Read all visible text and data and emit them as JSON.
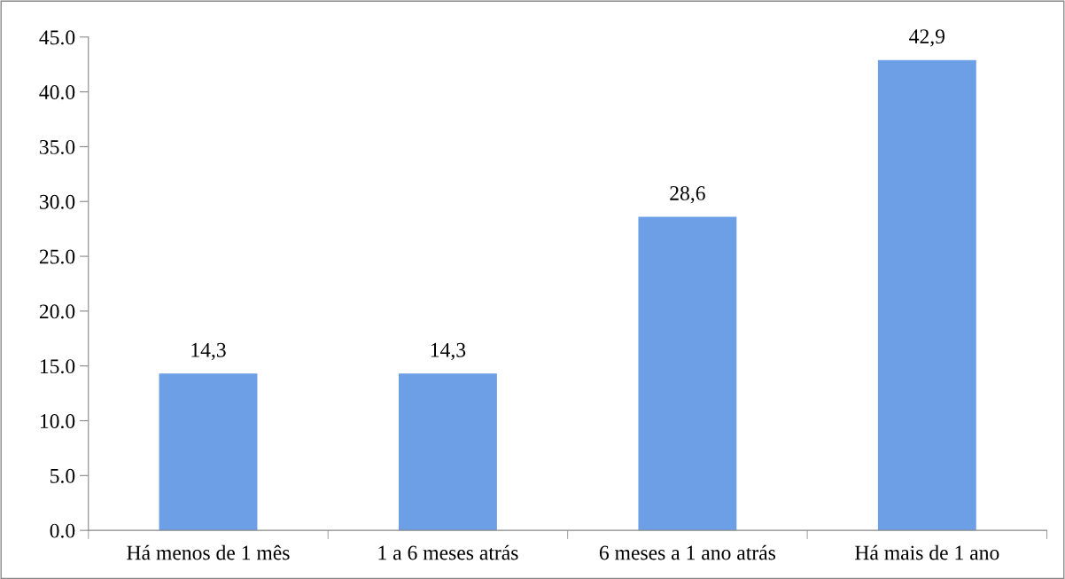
{
  "chart_data": {
    "type": "bar",
    "categories": [
      "Há menos de 1 mês",
      "1 a 6 meses atrás",
      "6 meses a 1 ano atrás",
      "Há mais de 1 ano"
    ],
    "values": [
      14.3,
      14.3,
      28.6,
      42.9
    ],
    "value_labels": [
      "14,3",
      "14,3",
      "28,6",
      "42,9"
    ],
    "color": "#6d9fe6",
    "ylim": [
      0,
      45
    ],
    "yticks": [
      {
        "value": 0,
        "label": "0.0"
      },
      {
        "value": 5,
        "label": "5.0"
      },
      {
        "value": 10,
        "label": "10.0"
      },
      {
        "value": 15,
        "label": "15.0"
      },
      {
        "value": 20,
        "label": "20.0"
      },
      {
        "value": 25,
        "label": "25.0"
      },
      {
        "value": 30,
        "label": "30.0"
      },
      {
        "value": 35,
        "label": "35.0"
      },
      {
        "value": 40,
        "label": "40.0"
      },
      {
        "value": 45,
        "label": "45.0"
      }
    ],
    "grid": false,
    "legend": false
  }
}
